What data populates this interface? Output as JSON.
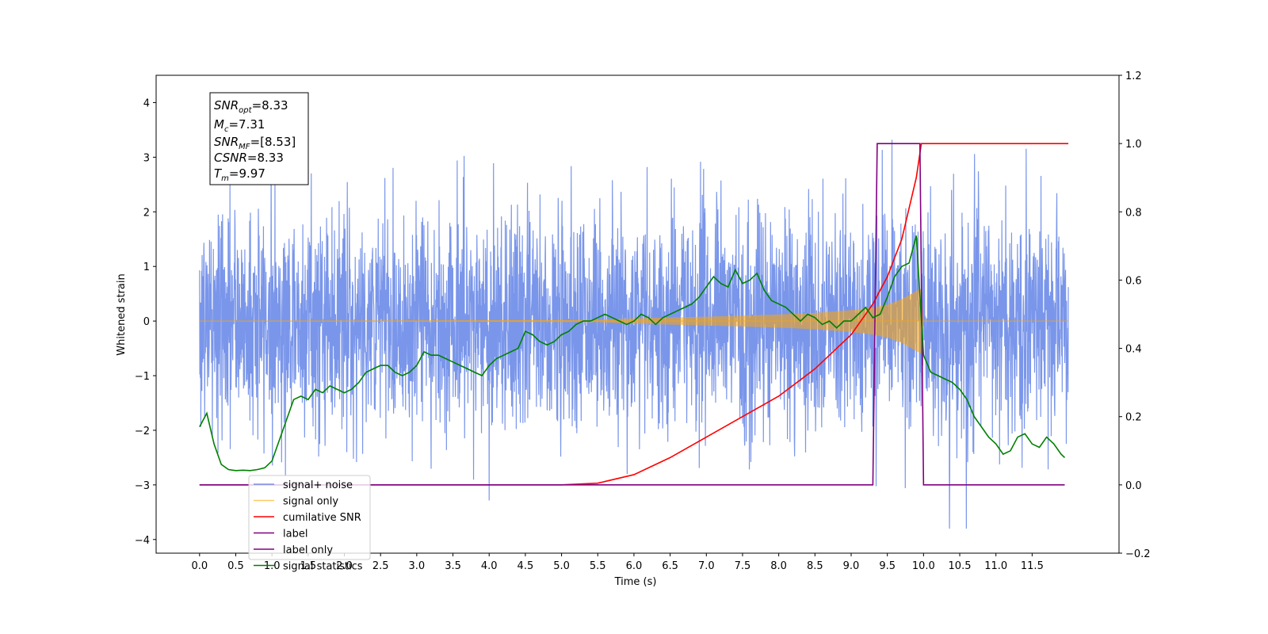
{
  "chart_data": {
    "type": "line",
    "xlabel": "Time (s)",
    "ylabel": "Whitened strain",
    "xlim": [
      -0.6,
      12.7
    ],
    "ylim": [
      -4.25,
      4.5
    ],
    "y2lim": [
      -0.2,
      1.2
    ],
    "x_ticks": [
      "0.0",
      "0.5",
      "1.0",
      "1.5",
      "2.0",
      "2.5",
      "3.0",
      "3.5",
      "4.0",
      "4.5",
      "5.0",
      "5.5",
      "6.0",
      "6.5",
      "7.0",
      "7.5",
      "8.0",
      "8.5",
      "9.0",
      "9.5",
      "10.0",
      "10.5",
      "11.0",
      "11.5"
    ],
    "y_ticks": [
      "−4",
      "−3",
      "−2",
      "−1",
      "0",
      "1",
      "2",
      "3",
      "4"
    ],
    "y2_ticks": [
      "−0.2",
      "0.0",
      "0.2",
      "0.4",
      "0.6",
      "0.8",
      "1.0",
      "1.2"
    ],
    "legend_position": "lower-left",
    "info_box": {
      "snr_opt": "8.33",
      "mc": "7.31",
      "snr_mf": "[8.53]",
      "csnr": "8.33",
      "tm": "9.97"
    },
    "series": [
      {
        "name": "signal+ noise",
        "color": "#4169e1",
        "axis": "left",
        "x_range": [
          0.0,
          12.0
        ],
        "y_range": [
          -3.8,
          4.1
        ],
        "noise_sigma": 1.0
      },
      {
        "name": "signal only",
        "color": "#ffa500",
        "axis": "left",
        "x_range": [
          0.0,
          12.0
        ],
        "envelope": {
          "x": [
            0.0,
            5.5,
            6.0,
            7.0,
            8.0,
            8.5,
            9.0,
            9.3,
            9.5,
            9.7,
            9.9,
            9.97,
            10.0,
            12.0
          ],
          "amp": [
            0.0,
            0.02,
            0.05,
            0.08,
            0.12,
            0.15,
            0.2,
            0.25,
            0.3,
            0.4,
            0.55,
            0.6,
            0.0,
            0.0
          ]
        }
      },
      {
        "name": "cumilative SNR",
        "color": "#ff0000",
        "axis": "right",
        "x": [
          0.0,
          5.0,
          5.5,
          6.0,
          6.5,
          7.0,
          7.5,
          8.0,
          8.5,
          9.0,
          9.3,
          9.5,
          9.7,
          9.9,
          9.97,
          10.0,
          12.0
        ],
        "y": [
          0.0,
          0.0,
          0.005,
          0.03,
          0.08,
          0.14,
          0.2,
          0.26,
          0.34,
          0.44,
          0.53,
          0.61,
          0.72,
          0.9,
          1.0,
          1.0,
          1.0
        ]
      },
      {
        "name": "label",
        "color": "#800080",
        "axis": "right",
        "x": [
          0.0,
          9.3,
          9.36,
          9.95,
          10.0,
          11.95
        ],
        "y": [
          0.0,
          0.0,
          1.0,
          1.0,
          0.0,
          0.0
        ]
      },
      {
        "name": "label only",
        "color": "#800080",
        "axis": "right",
        "hidden_line": true
      },
      {
        "name": "signal statistics",
        "color": "#008000",
        "axis": "right",
        "x": [
          0.0,
          0.1,
          0.2,
          0.3,
          0.4,
          0.5,
          0.6,
          0.7,
          0.8,
          0.9,
          1.0,
          1.1,
          1.2,
          1.3,
          1.4,
          1.5,
          1.6,
          1.7,
          1.8,
          1.9,
          2.0,
          2.1,
          2.2,
          2.3,
          2.4,
          2.5,
          2.6,
          2.7,
          2.8,
          2.9,
          3.0,
          3.1,
          3.2,
          3.3,
          3.4,
          3.5,
          3.6,
          3.7,
          3.8,
          3.9,
          4.0,
          4.1,
          4.2,
          4.3,
          4.4,
          4.5,
          4.6,
          4.7,
          4.8,
          4.9,
          5.0,
          5.1,
          5.2,
          5.3,
          5.4,
          5.5,
          5.6,
          5.7,
          5.8,
          5.9,
          6.0,
          6.1,
          6.2,
          6.3,
          6.4,
          6.5,
          6.6,
          6.7,
          6.8,
          6.9,
          7.0,
          7.1,
          7.2,
          7.3,
          7.4,
          7.5,
          7.6,
          7.7,
          7.8,
          7.9,
          8.0,
          8.1,
          8.2,
          8.3,
          8.4,
          8.5,
          8.6,
          8.7,
          8.8,
          8.9,
          9.0,
          9.1,
          9.2,
          9.3,
          9.4,
          9.5,
          9.6,
          9.7,
          9.8,
          9.9,
          10.0,
          10.1,
          10.2,
          10.3,
          10.4,
          10.5,
          10.6,
          10.7,
          10.8,
          10.9,
          11.0,
          11.1,
          11.2,
          11.3,
          11.4,
          11.5,
          11.6,
          11.7,
          11.8,
          11.9,
          11.95
        ],
        "y": [
          0.17,
          0.21,
          0.12,
          0.06,
          0.045,
          0.042,
          0.043,
          0.042,
          0.045,
          0.05,
          0.07,
          0.13,
          0.19,
          0.25,
          0.26,
          0.25,
          0.28,
          0.27,
          0.29,
          0.28,
          0.27,
          0.28,
          0.3,
          0.33,
          0.34,
          0.35,
          0.35,
          0.33,
          0.32,
          0.33,
          0.35,
          0.39,
          0.38,
          0.38,
          0.37,
          0.36,
          0.35,
          0.34,
          0.33,
          0.32,
          0.35,
          0.37,
          0.38,
          0.39,
          0.4,
          0.45,
          0.44,
          0.42,
          0.41,
          0.42,
          0.44,
          0.45,
          0.47,
          0.48,
          0.48,
          0.49,
          0.5,
          0.49,
          0.48,
          0.47,
          0.48,
          0.5,
          0.49,
          0.47,
          0.49,
          0.5,
          0.51,
          0.52,
          0.53,
          0.55,
          0.58,
          0.61,
          0.59,
          0.58,
          0.63,
          0.59,
          0.6,
          0.62,
          0.57,
          0.54,
          0.53,
          0.52,
          0.5,
          0.48,
          0.5,
          0.49,
          0.47,
          0.48,
          0.46,
          0.48,
          0.48,
          0.5,
          0.52,
          0.49,
          0.5,
          0.55,
          0.61,
          0.64,
          0.65,
          0.73,
          0.38,
          0.33,
          0.32,
          0.31,
          0.3,
          0.28,
          0.25,
          0.2,
          0.17,
          0.14,
          0.12,
          0.09,
          0.1,
          0.14,
          0.15,
          0.12,
          0.11,
          0.14,
          0.12,
          0.09,
          0.08
        ]
      }
    ]
  }
}
